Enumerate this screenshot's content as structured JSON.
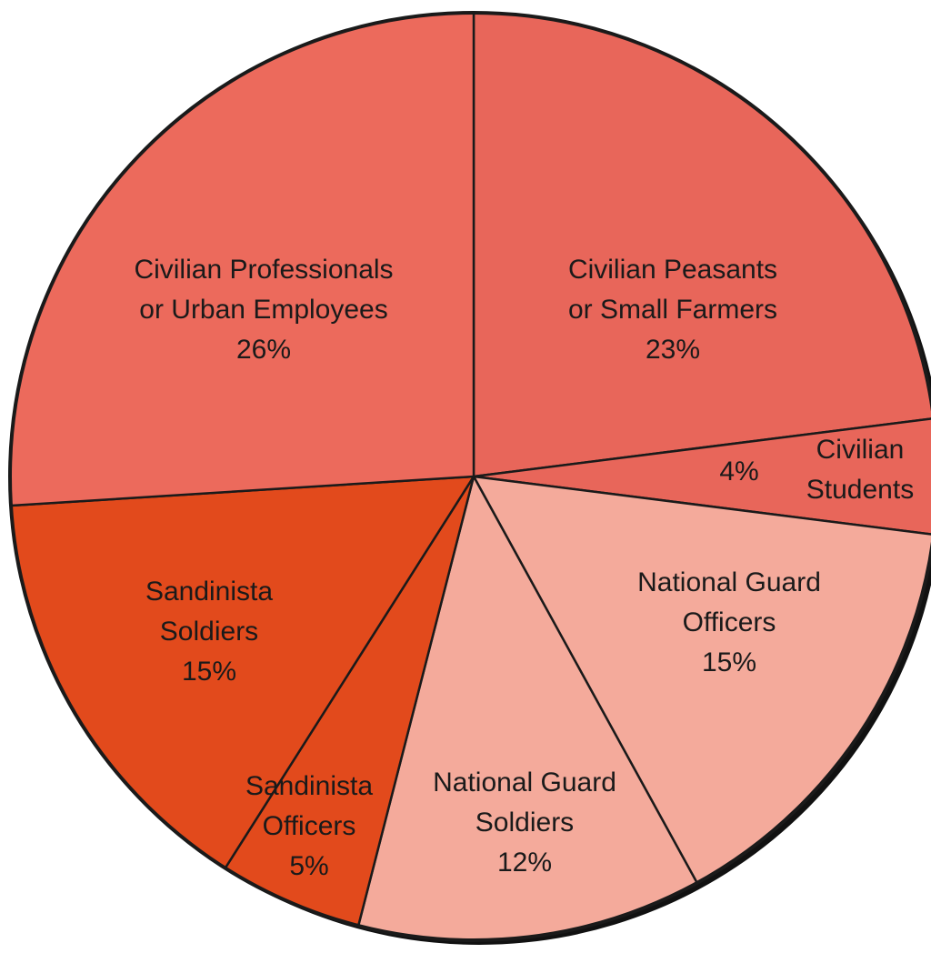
{
  "chart_data": {
    "type": "pie",
    "title": "",
    "slices": [
      {
        "name": "Civilian Peasants or Small Farmers",
        "label_lines": [
          "Civilian Peasants",
          "or Small Farmers"
        ],
        "value": 23,
        "value_label": "23%",
        "color": "#e8665a"
      },
      {
        "name": "Civilian Students",
        "label_lines": [
          "Civilian",
          "Students"
        ],
        "value": 4,
        "value_label": "4%",
        "color": "#e8665a"
      },
      {
        "name": "National Guard Officers",
        "label_lines": [
          "National Guard",
          "Officers"
        ],
        "value": 15,
        "value_label": "15%",
        "color": "#f4aa9b"
      },
      {
        "name": "National Guard Soldiers",
        "label_lines": [
          "National Guard",
          "Soldiers"
        ],
        "value": 12,
        "value_label": "12%",
        "color": "#f4aa9b"
      },
      {
        "name": "Sandinista Officers",
        "label_lines": [
          "Sandinista",
          "Officers"
        ],
        "value": 5,
        "value_label": "5%",
        "color": "#e24a1c"
      },
      {
        "name": "Sandinista Soldiers",
        "label_lines": [
          "Sandinista",
          "Soldiers"
        ],
        "value": 15,
        "value_label": "15%",
        "color": "#e24a1c"
      },
      {
        "name": "Civilian Professionals or Urban Employees",
        "label_lines": [
          "Civilian Professionals",
          "or Urban Employees"
        ],
        "value": 26,
        "value_label": "26%",
        "color": "#ec6a5c"
      }
    ],
    "start_angle_deg": 0,
    "direction": "clockwise",
    "legend": "none"
  }
}
